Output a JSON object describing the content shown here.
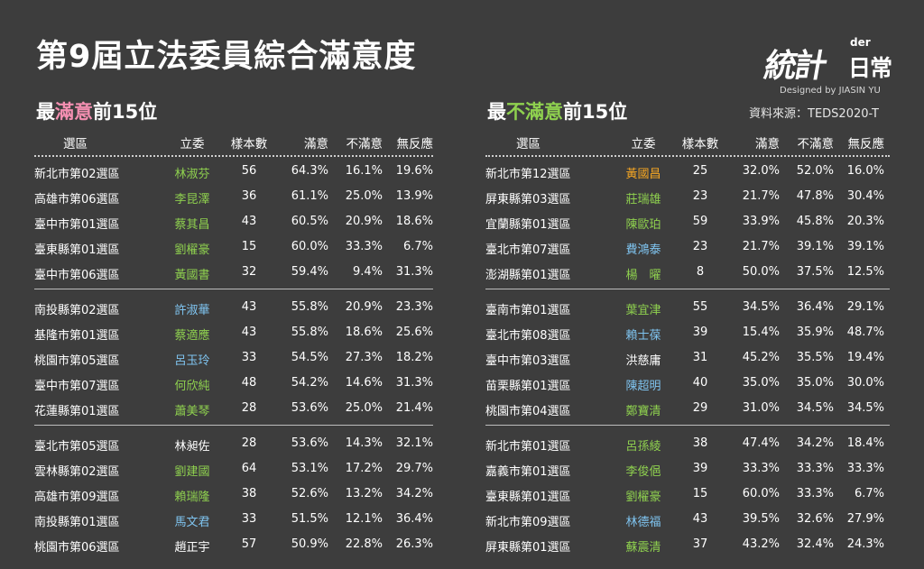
{
  "title": "第9屆立法委員綜合滿意度",
  "logo": {
    "mark": "統計",
    "der": "der",
    "text": "日常"
  },
  "designed_by": "Designed by JIASIN YU",
  "source": "資料來源：TEDS2020-T",
  "left": {
    "title_pre": "最",
    "title_hl": "滿意",
    "title_post": "前15位",
    "headers": [
      "選區",
      "立委",
      "樣本數",
      "滿意",
      "不滿意",
      "無反應"
    ],
    "rows": [
      [
        "新北市第02選區",
        "林淑芬",
        "56",
        "64.3%",
        "16.1%",
        "19.6%",
        "#8fd14f"
      ],
      [
        "高雄市第06選區",
        "李昆澤",
        "36",
        "61.1%",
        "25.0%",
        "13.9%",
        "#8fd14f"
      ],
      [
        "臺中市第01選區",
        "蔡其昌",
        "43",
        "60.5%",
        "20.9%",
        "18.6%",
        "#8fd14f"
      ],
      [
        "臺東縣第01選區",
        "劉櫂豪",
        "15",
        "60.0%",
        "33.3%",
        "6.7%",
        "#8fd14f"
      ],
      [
        "臺中市第06選區",
        "黃國書",
        "32",
        "59.4%",
        "9.4%",
        "31.3%",
        "#8fd14f"
      ],
      [
        "南投縣第02選區",
        "許淑華",
        "43",
        "55.8%",
        "20.9%",
        "23.3%",
        "#7fc4f0"
      ],
      [
        "基隆市第01選區",
        "蔡適應",
        "43",
        "55.8%",
        "18.6%",
        "25.6%",
        "#8fd14f"
      ],
      [
        "桃園市第05選區",
        "呂玉玲",
        "33",
        "54.5%",
        "27.3%",
        "18.2%",
        "#7fc4f0"
      ],
      [
        "臺中市第07選區",
        "何欣純",
        "48",
        "54.2%",
        "14.6%",
        "31.3%",
        "#8fd14f"
      ],
      [
        "花蓮縣第01選區",
        "蕭美琴",
        "28",
        "53.6%",
        "25.0%",
        "21.4%",
        "#8fd14f"
      ],
      [
        "臺北市第05選區",
        "林昶佐",
        "28",
        "53.6%",
        "14.3%",
        "32.1%",
        "#ffffff"
      ],
      [
        "雲林縣第02選區",
        "劉建國",
        "64",
        "53.1%",
        "17.2%",
        "29.7%",
        "#8fd14f"
      ],
      [
        "高雄市第09選區",
        "賴瑞隆",
        "38",
        "52.6%",
        "13.2%",
        "34.2%",
        "#8fd14f"
      ],
      [
        "南投縣第01選區",
        "馬文君",
        "33",
        "51.5%",
        "12.1%",
        "36.4%",
        "#7fc4f0"
      ],
      [
        "桃園市第06選區",
        "趙正宇",
        "57",
        "50.9%",
        "22.8%",
        "26.3%",
        "#ffffff"
      ]
    ]
  },
  "right": {
    "title_pre": "最",
    "title_hl": "不滿意",
    "title_post": "前15位",
    "headers": [
      "選區",
      "立委",
      "樣本數",
      "滿意",
      "不滿意",
      "無反應"
    ],
    "rows": [
      [
        "新北市第12選區",
        "黃國昌",
        "25",
        "32.0%",
        "52.0%",
        "16.0%",
        "#f5a623"
      ],
      [
        "屏東縣第03選區",
        "莊瑞雄",
        "23",
        "21.7%",
        "47.8%",
        "30.4%",
        "#8fd14f"
      ],
      [
        "宜蘭縣第01選區",
        "陳歐珀",
        "59",
        "33.9%",
        "45.8%",
        "20.3%",
        "#8fd14f"
      ],
      [
        "臺北市第07選區",
        "費鴻泰",
        "23",
        "21.7%",
        "39.1%",
        "39.1%",
        "#7fc4f0"
      ],
      [
        "澎湖縣第01選區",
        "楊　曜",
        "8",
        "50.0%",
        "37.5%",
        "12.5%",
        "#8fd14f"
      ],
      [
        "臺南市第01選區",
        "葉宜津",
        "55",
        "34.5%",
        "36.4%",
        "29.1%",
        "#8fd14f"
      ],
      [
        "臺北市第08選區",
        "賴士葆",
        "39",
        "15.4%",
        "35.9%",
        "48.7%",
        "#7fc4f0"
      ],
      [
        "臺中市第03選區",
        "洪慈庸",
        "31",
        "45.2%",
        "35.5%",
        "19.4%",
        "#ffffff"
      ],
      [
        "苗栗縣第01選區",
        "陳超明",
        "40",
        "35.0%",
        "35.0%",
        "30.0%",
        "#7fc4f0"
      ],
      [
        "桃園市第04選區",
        "鄭寶清",
        "29",
        "31.0%",
        "34.5%",
        "34.5%",
        "#8fd14f"
      ],
      [
        "新北市第01選區",
        "呂孫綾",
        "38",
        "47.4%",
        "34.2%",
        "18.4%",
        "#8fd14f"
      ],
      [
        "嘉義市第01選區",
        "李俊俋",
        "39",
        "33.3%",
        "33.3%",
        "33.3%",
        "#8fd14f"
      ],
      [
        "臺東縣第01選區",
        "劉櫂豪",
        "15",
        "60.0%",
        "33.3%",
        "6.7%",
        "#8fd14f"
      ],
      [
        "新北市第09選區",
        "林德福",
        "43",
        "39.5%",
        "32.6%",
        "27.9%",
        "#7fc4f0"
      ],
      [
        "屏東縣第01選區",
        "蘇震清",
        "37",
        "43.2%",
        "32.4%",
        "24.3%",
        "#8fd14f"
      ]
    ]
  }
}
